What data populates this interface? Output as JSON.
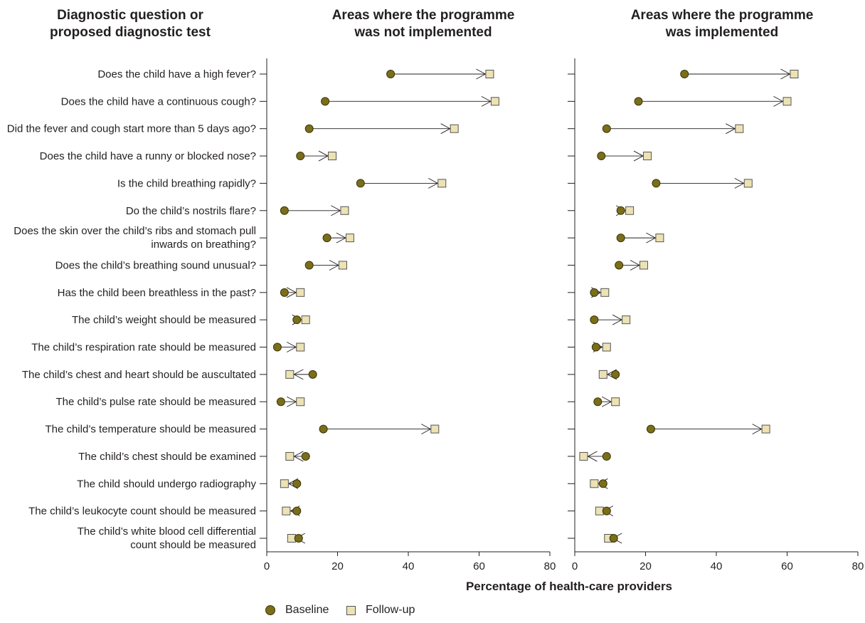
{
  "headers": {
    "row_header": [
      "Diagnostic question or",
      "proposed diagnostic test"
    ],
    "panel_titles": [
      [
        "Areas where the programme",
        "was not implemented"
      ],
      [
        "Areas where the programme",
        "was implemented"
      ]
    ]
  },
  "colors": {
    "baseline_fill": "#7a6e1a",
    "baseline_stroke": "#3a3408",
    "followup_fill": "#ece2b4",
    "followup_stroke": "#555555",
    "axis": "#231f20"
  },
  "legend": {
    "baseline": "Baseline",
    "followup": "Follow-up"
  },
  "chart_data": {
    "type": "scatter",
    "xlabel": "Percentage of health-care providers",
    "xlim": [
      0,
      80
    ],
    "xticks": [
      0,
      20,
      40,
      60,
      80
    ],
    "legend_position": "bottom",
    "grid": false,
    "categories": [
      [
        "Does the child have a high fever?"
      ],
      [
        "Does the child have a continuous cough?"
      ],
      [
        "Did the fever and cough start more than 5 days ago?"
      ],
      [
        "Does the child have a runny or blocked nose?"
      ],
      [
        "Is the child breathing rapidly?"
      ],
      [
        "Do the child’s nostrils flare?"
      ],
      [
        "Does the skin over the child’s ribs and stomach pull",
        "inwards on breathing?"
      ],
      [
        "Does the child’s breathing sound unusual?"
      ],
      [
        "Has the child been breathless in the past?"
      ],
      [
        "The child’s weight should be measured"
      ],
      [
        "The child’s respiration rate should be measured"
      ],
      [
        "The child’s chest and heart should be auscultated"
      ],
      [
        "The child’s pulse rate should be measured"
      ],
      [
        "The child’s temperature should be measured"
      ],
      [
        "The child’s chest should be examined"
      ],
      [
        "The child should undergo radiography"
      ],
      [
        "The child’s leukocyte count should be measured"
      ],
      [
        "The child’s white blood cell differential",
        "count should be measured"
      ]
    ],
    "panels": [
      {
        "title": "Areas where the programme was not implemented",
        "baseline": [
          35,
          16.5,
          12,
          9.5,
          26.5,
          5,
          17,
          12,
          5,
          8.5,
          3,
          13,
          4,
          16,
          11,
          8.5,
          8.5,
          9
        ],
        "followup": [
          63,
          64.5,
          53,
          18.5,
          49.5,
          22,
          23.5,
          21.5,
          9.5,
          11,
          9.5,
          6.5,
          9.5,
          47.5,
          6.5,
          5,
          5.5,
          7
        ]
      },
      {
        "title": "Areas where the programme was implemented",
        "baseline": [
          31,
          18,
          9,
          7.5,
          23,
          13,
          13,
          12.5,
          5.5,
          5.5,
          6,
          11.5,
          6.5,
          21.5,
          9,
          8,
          9,
          11
        ],
        "followup": [
          62,
          60,
          46.5,
          20.5,
          49,
          15.5,
          24,
          19.5,
          8.5,
          14.5,
          9,
          8,
          11.5,
          54,
          2.5,
          5.5,
          7,
          9.5
        ]
      }
    ]
  }
}
